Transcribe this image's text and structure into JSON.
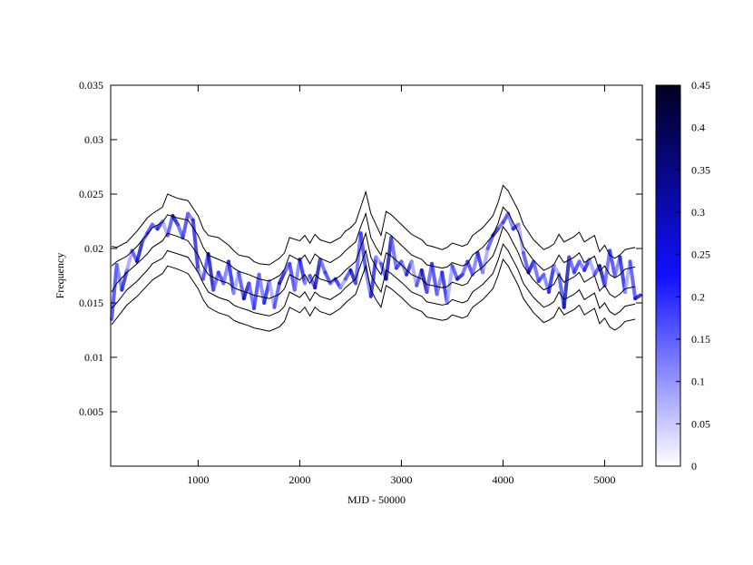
{
  "chart_data": {
    "type": "heatmap",
    "title": "",
    "xlabel": "MJD - 50000",
    "ylabel": "Frequency",
    "xlim": [
      140,
      5370
    ],
    "ylim": [
      0,
      0.035
    ],
    "x_ticks": [
      1000,
      2000,
      3000,
      4000,
      5000
    ],
    "y_ticks": [
      0.005,
      0.01,
      0.015,
      0.02,
      0.025,
      0.03,
      0.035
    ],
    "colorbar": {
      "range": [
        0,
        0.45
      ],
      "ticks": [
        0,
        0.05,
        0.1,
        0.15,
        0.2,
        0.25,
        0.3,
        0.35,
        0.4,
        0.45
      ],
      "colors": [
        "#ffffff",
        "#1010ff",
        "#000020"
      ]
    },
    "contour_lines": [
      {
        "x": [
          150,
          200,
          300,
          400,
          500,
          550,
          650,
          700,
          800,
          900,
          1000,
          1050,
          1100,
          1200,
          1300,
          1350,
          1400,
          1500,
          1550,
          1600,
          1700,
          1800,
          1850,
          1900,
          2000,
          2050,
          2100,
          2150,
          2200,
          2300,
          2400,
          2450,
          2500,
          2550,
          2600,
          2650,
          2700,
          2750,
          2800,
          2850,
          2900,
          3000,
          3100,
          3200,
          3250,
          3300,
          3400,
          3450,
          3500,
          3600,
          3650,
          3700,
          3800,
          3900,
          3950,
          4000,
          4050,
          4100,
          4150,
          4200,
          4300,
          4400,
          4450,
          4500,
          4550,
          4600,
          4700,
          4750,
          4800,
          4900,
          4950,
          5000,
          5050,
          5100,
          5150,
          5200,
          5300
        ],
        "y": [
          0.0202,
          0.0201,
          0.0206,
          0.0216,
          0.0228,
          0.0232,
          0.0238,
          0.025,
          0.0246,
          0.0244,
          0.023,
          0.0218,
          0.0212,
          0.021,
          0.0203,
          0.0198,
          0.0194,
          0.0192,
          0.0188,
          0.0186,
          0.0185,
          0.0191,
          0.0196,
          0.021,
          0.0207,
          0.0212,
          0.0205,
          0.0213,
          0.0208,
          0.0205,
          0.021,
          0.0216,
          0.0219,
          0.0224,
          0.0238,
          0.0252,
          0.0232,
          0.0222,
          0.0212,
          0.0234,
          0.0231,
          0.0222,
          0.0213,
          0.0208,
          0.0203,
          0.0202,
          0.0199,
          0.0201,
          0.0205,
          0.0202,
          0.0204,
          0.0212,
          0.0219,
          0.023,
          0.0242,
          0.0258,
          0.0253,
          0.0244,
          0.0235,
          0.0222,
          0.0208,
          0.0199,
          0.0201,
          0.0204,
          0.0213,
          0.0206,
          0.0211,
          0.0215,
          0.0206,
          0.0212,
          0.0197,
          0.0203,
          0.0194,
          0.0191,
          0.0194,
          0.0199,
          0.0201
        ]
      },
      {
        "x": [
          150,
          200,
          300,
          400,
          500,
          550,
          650,
          700,
          800,
          900,
          1000,
          1050,
          1100,
          1200,
          1300,
          1350,
          1400,
          1500,
          1550,
          1600,
          1700,
          1800,
          1850,
          1900,
          2000,
          2050,
          2100,
          2150,
          2200,
          2300,
          2400,
          2450,
          2500,
          2550,
          2600,
          2650,
          2700,
          2750,
          2800,
          2850,
          2900,
          3000,
          3100,
          3200,
          3250,
          3300,
          3400,
          3450,
          3500,
          3600,
          3650,
          3700,
          3800,
          3900,
          3950,
          4000,
          4050,
          4100,
          4150,
          4200,
          4300,
          4400,
          4450,
          4500,
          4550,
          4600,
          4700,
          4750,
          4800,
          4900,
          4950,
          5000,
          5050,
          5100,
          5150,
          5200,
          5300
        ],
        "y": [
          0.0184,
          0.0188,
          0.0193,
          0.0202,
          0.0213,
          0.0219,
          0.0224,
          0.0231,
          0.0228,
          0.0226,
          0.0212,
          0.0201,
          0.0194,
          0.019,
          0.0186,
          0.0182,
          0.0179,
          0.0176,
          0.0174,
          0.0172,
          0.017,
          0.0175,
          0.0181,
          0.0194,
          0.0189,
          0.0194,
          0.0186,
          0.0195,
          0.0191,
          0.0187,
          0.0193,
          0.0198,
          0.0202,
          0.0206,
          0.022,
          0.0232,
          0.021,
          0.0201,
          0.0194,
          0.0215,
          0.0212,
          0.0203,
          0.0194,
          0.019,
          0.0185,
          0.0184,
          0.0182,
          0.0183,
          0.0187,
          0.0184,
          0.0186,
          0.0194,
          0.0201,
          0.0212,
          0.0223,
          0.0238,
          0.0233,
          0.0224,
          0.0215,
          0.0202,
          0.0189,
          0.018,
          0.0182,
          0.0185,
          0.0194,
          0.0187,
          0.0192,
          0.0196,
          0.0187,
          0.0193,
          0.0179,
          0.0184,
          0.0176,
          0.0173,
          0.0176,
          0.0181,
          0.0183
        ]
      },
      {
        "x": [
          150,
          200,
          300,
          400,
          500,
          550,
          650,
          700,
          800,
          900,
          1000,
          1050,
          1100,
          1200,
          1300,
          1350,
          1400,
          1500,
          1550,
          1600,
          1700,
          1800,
          1850,
          1900,
          2000,
          2050,
          2100,
          2150,
          2200,
          2300,
          2400,
          2450,
          2500,
          2550,
          2600,
          2650,
          2700,
          2750,
          2800,
          2850,
          2900,
          3000,
          3100,
          3200,
          3250,
          3300,
          3400,
          3450,
          3500,
          3600,
          3650,
          3700,
          3800,
          3900,
          3950,
          4000,
          4050,
          4100,
          4150,
          4200,
          4300,
          4400,
          4450,
          4500,
          4550,
          4600,
          4700,
          4750,
          4800,
          4900,
          4950,
          5000,
          5050,
          5100,
          5150,
          5200,
          5300
        ],
        "y": [
          0.016,
          0.0168,
          0.0178,
          0.0186,
          0.0195,
          0.0201,
          0.0207,
          0.0214,
          0.0211,
          0.0207,
          0.0194,
          0.0183,
          0.0176,
          0.0171,
          0.0168,
          0.0164,
          0.0162,
          0.0159,
          0.0157,
          0.0156,
          0.0154,
          0.0158,
          0.0163,
          0.0176,
          0.0171,
          0.0176,
          0.0168,
          0.0176,
          0.0172,
          0.0169,
          0.0175,
          0.018,
          0.0184,
          0.0188,
          0.0201,
          0.0214,
          0.0192,
          0.0183,
          0.0176,
          0.0196,
          0.0193,
          0.0185,
          0.0176,
          0.0172,
          0.0167,
          0.0166,
          0.0164,
          0.0165,
          0.0169,
          0.0166,
          0.0168,
          0.0176,
          0.0183,
          0.0193,
          0.0205,
          0.022,
          0.0214,
          0.0205,
          0.0196,
          0.0184,
          0.0171,
          0.0162,
          0.0164,
          0.0167,
          0.0176,
          0.0169,
          0.0174,
          0.0178,
          0.0169,
          0.0175,
          0.0161,
          0.0166,
          0.0158,
          0.0155,
          0.0158,
          0.0163,
          0.0165
        ]
      },
      {
        "x": [
          150,
          200,
          300,
          400,
          500,
          550,
          650,
          700,
          800,
          900,
          1000,
          1050,
          1100,
          1200,
          1300,
          1350,
          1400,
          1500,
          1550,
          1600,
          1700,
          1800,
          1850,
          1900,
          2000,
          2050,
          2100,
          2150,
          2200,
          2300,
          2400,
          2450,
          2500,
          2550,
          2600,
          2650,
          2700,
          2750,
          2800,
          2850,
          2900,
          3000,
          3100,
          3200,
          3250,
          3300,
          3400,
          3450,
          3500,
          3600,
          3650,
          3700,
          3800,
          3900,
          3950,
          4000,
          4050,
          4100,
          4150,
          4200,
          4300,
          4400,
          4450,
          4500,
          4550,
          4600,
          4700,
          4750,
          4800,
          4900,
          4950,
          5000,
          5050,
          5100,
          5150,
          5200,
          5300
        ],
        "y": [
          0.0145,
          0.015,
          0.0162,
          0.017,
          0.018,
          0.0186,
          0.0191,
          0.0198,
          0.0195,
          0.0192,
          0.0178,
          0.0168,
          0.016,
          0.0155,
          0.0152,
          0.0148,
          0.0146,
          0.0143,
          0.0141,
          0.014,
          0.0138,
          0.0142,
          0.0147,
          0.016,
          0.0155,
          0.016,
          0.0152,
          0.016,
          0.0156,
          0.0153,
          0.0159,
          0.0164,
          0.0168,
          0.0172,
          0.0185,
          0.0198,
          0.0176,
          0.0167,
          0.016,
          0.018,
          0.0177,
          0.0169,
          0.016,
          0.0156,
          0.0151,
          0.015,
          0.0148,
          0.0149,
          0.0153,
          0.015,
          0.0152,
          0.016,
          0.0167,
          0.0177,
          0.0189,
          0.0204,
          0.0198,
          0.0189,
          0.018,
          0.0168,
          0.0155,
          0.0146,
          0.0148,
          0.0151,
          0.016,
          0.0153,
          0.0158,
          0.0162,
          0.0153,
          0.0159,
          0.0145,
          0.015,
          0.0142,
          0.0139,
          0.0142,
          0.0147,
          0.0149
        ]
      },
      {
        "x": [
          150,
          200,
          300,
          400,
          500,
          550,
          650,
          700,
          800,
          900,
          1000,
          1050,
          1100,
          1200,
          1300,
          1350,
          1400,
          1500,
          1550,
          1600,
          1700,
          1800,
          1850,
          1900,
          2000,
          2050,
          2100,
          2150,
          2200,
          2300,
          2400,
          2450,
          2500,
          2550,
          2600,
          2650,
          2700,
          2750,
          2800,
          2850,
          2900,
          3000,
          3100,
          3200,
          3250,
          3300,
          3400,
          3450,
          3500,
          3600,
          3650,
          3700,
          3800,
          3900,
          3950,
          4000,
          4050,
          4100,
          4150,
          4200,
          4300,
          4400,
          4450,
          4500,
          4550,
          4600,
          4700,
          4750,
          4800,
          4900,
          4950,
          5000,
          5050,
          5100,
          5150,
          5200,
          5300
        ],
        "y": [
          0.013,
          0.0136,
          0.0148,
          0.0156,
          0.0166,
          0.0171,
          0.0177,
          0.0184,
          0.0181,
          0.0177,
          0.0163,
          0.0153,
          0.0146,
          0.0141,
          0.0138,
          0.0134,
          0.0132,
          0.0129,
          0.0127,
          0.0126,
          0.0124,
          0.0128,
          0.0133,
          0.0146,
          0.0141,
          0.0146,
          0.0138,
          0.0146,
          0.0142,
          0.0139,
          0.0145,
          0.015,
          0.0154,
          0.0158,
          0.0171,
          0.0184,
          0.0162,
          0.0153,
          0.0146,
          0.0166,
          0.0163,
          0.0155,
          0.0146,
          0.0142,
          0.0137,
          0.0136,
          0.0134,
          0.0135,
          0.0139,
          0.0136,
          0.0138,
          0.0146,
          0.0153,
          0.0163,
          0.0175,
          0.019,
          0.0184,
          0.0175,
          0.0166,
          0.0154,
          0.0141,
          0.0132,
          0.0134,
          0.0137,
          0.0146,
          0.0139,
          0.0144,
          0.0148,
          0.0139,
          0.0145,
          0.0131,
          0.0136,
          0.0128,
          0.0125,
          0.0128,
          0.0133,
          0.0135
        ]
      }
    ],
    "ridge": {
      "x": [
        150,
        200,
        250,
        300,
        350,
        400,
        450,
        500,
        550,
        600,
        650,
        700,
        750,
        800,
        850,
        900,
        950,
        1000,
        1050,
        1100,
        1150,
        1200,
        1250,
        1300,
        1350,
        1400,
        1450,
        1500,
        1550,
        1600,
        1650,
        1700,
        1750,
        1800,
        1850,
        1900,
        1950,
        2000,
        2050,
        2100,
        2150,
        2200,
        2250,
        2300,
        2350,
        2400,
        2450,
        2500,
        2550,
        2600,
        2650,
        2700,
        2750,
        2800,
        2850,
        2900,
        2950,
        3000,
        3050,
        3100,
        3150,
        3200,
        3250,
        3300,
        3350,
        3400,
        3450,
        3500,
        3550,
        3600,
        3650,
        3700,
        3750,
        3800,
        3850,
        3900,
        3950,
        4000,
        4050,
        4100,
        4150,
        4200,
        4250,
        4300,
        4350,
        4400,
        4450,
        4500,
        4550,
        4600,
        4650,
        4700,
        4750,
        4800,
        4850,
        4900,
        4950,
        5000,
        5050,
        5100,
        5150,
        5200,
        5250,
        5300,
        5350
      ],
      "y": [
        0.0135,
        0.0185,
        0.0162,
        0.018,
        0.0198,
        0.0188,
        0.0206,
        0.0214,
        0.0222,
        0.0218,
        0.0225,
        0.0212,
        0.023,
        0.0222,
        0.021,
        0.0232,
        0.0226,
        0.018,
        0.0172,
        0.0195,
        0.0162,
        0.0178,
        0.0168,
        0.0188,
        0.0159,
        0.0178,
        0.0154,
        0.0168,
        0.0145,
        0.0176,
        0.015,
        0.017,
        0.0146,
        0.0168,
        0.0178,
        0.0186,
        0.0162,
        0.019,
        0.0168,
        0.0175,
        0.0164,
        0.019,
        0.0178,
        0.0168,
        0.0172,
        0.0164,
        0.0172,
        0.018,
        0.0168,
        0.0214,
        0.018,
        0.0156,
        0.0192,
        0.0186,
        0.0172,
        0.021,
        0.0182,
        0.0188,
        0.0176,
        0.0188,
        0.0166,
        0.018,
        0.016,
        0.0186,
        0.0158,
        0.0178,
        0.015,
        0.0184,
        0.0172,
        0.0176,
        0.0188,
        0.0176,
        0.0196,
        0.0178,
        0.02,
        0.0212,
        0.0218,
        0.0224,
        0.0232,
        0.0218,
        0.0222,
        0.0196,
        0.0178,
        0.0188,
        0.017,
        0.0176,
        0.016,
        0.0184,
        0.0176,
        0.0146,
        0.0192,
        0.0178,
        0.0188,
        0.018,
        0.019,
        0.0176,
        0.0184,
        0.0166,
        0.0198,
        0.0175,
        0.0192,
        0.016,
        0.0188,
        0.0154,
        0.0157
      ]
    }
  }
}
